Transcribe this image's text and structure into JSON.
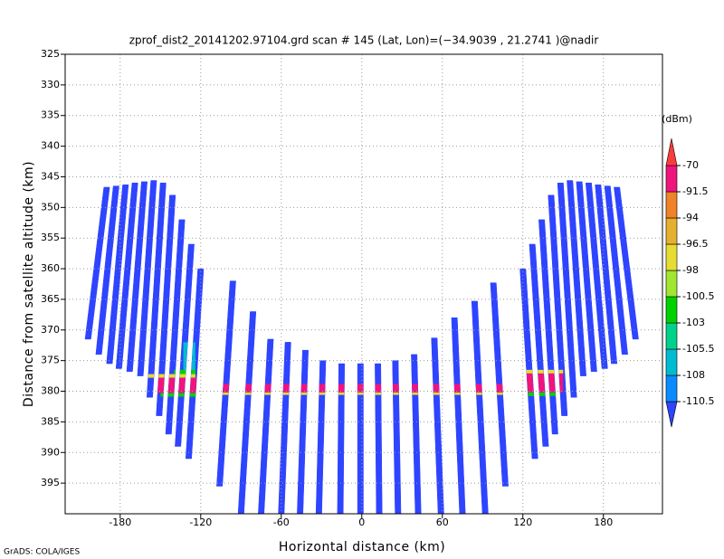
{
  "chart_data": {
    "type": "beam-profile",
    "title": "zprof_dist2_20141202.97104.grd   scan # 145   (Lat, Lon)=(−34.9039 , 21.2741 )@nadir",
    "x_label": "Horizontal distance (km)",
    "y_label": "Distance from satellite altitude (km)",
    "colorbar_label": "(dBm)",
    "credit": "GrADS: COLA/IGES",
    "xlim": [
      -221,
      224
    ],
    "ylim": [
      325,
      400
    ],
    "xticks": [
      -180,
      -120,
      -60,
      0,
      60,
      120,
      180
    ],
    "yticks": [
      325,
      330,
      335,
      340,
      345,
      350,
      355,
      360,
      365,
      370,
      375,
      380,
      385,
      390,
      395
    ],
    "grid": true,
    "y_inverted": true,
    "levels": [
      -110.5,
      -108,
      -105.5,
      -103,
      -100.5,
      -98,
      -96.5,
      -94,
      -91.5,
      -70
    ],
    "colors": [
      "#2e44ff",
      "#0a8cff",
      "#00bcd2",
      "#00d28c",
      "#00d200",
      "#a0e632",
      "#e6dc32",
      "#e6af2d",
      "#f08228",
      "#f0147d",
      "#fa3c3c"
    ],
    "beam_value": -112,
    "beams": [
      {
        "x_top": -190,
        "x_bottom": -204,
        "top": 346.7,
        "bottom": 371.5
      },
      {
        "x_top": -183,
        "x_bottom": -196,
        "top": 346.5,
        "bottom": 374
      },
      {
        "x_top": -176,
        "x_bottom": -188,
        "top": 346.3,
        "bottom": 375.5
      },
      {
        "x_top": -169,
        "x_bottom": -181,
        "top": 346,
        "bottom": 376.3
      },
      {
        "x_top": -162,
        "x_bottom": -173,
        "top": 345.8,
        "bottom": 376.8
      },
      {
        "x_top": -155,
        "x_bottom": -165,
        "top": 345.6,
        "bottom": 377.5
      },
      {
        "x_top": -148,
        "x_bottom": -158,
        "top": 346,
        "bottom": 381
      },
      {
        "x_top": -141,
        "x_bottom": -151,
        "top": 348,
        "bottom": 384
      },
      {
        "x_top": -134,
        "x_bottom": -144,
        "top": 352,
        "bottom": 387
      },
      {
        "x_top": -127,
        "x_bottom": -137,
        "top": 356,
        "bottom": 389
      },
      {
        "x_top": -120,
        "x_bottom": -129,
        "top": 360,
        "bottom": 391
      },
      {
        "x_top": -96,
        "x_bottom": -106,
        "top": 362,
        "bottom": 395.5
      },
      {
        "x_top": -81,
        "x_bottom": -90,
        "top": 367,
        "bottom": 400
      },
      {
        "x_top": -68,
        "x_bottom": -75,
        "top": 371.5,
        "bottom": 400
      },
      {
        "x_top": -55,
        "x_bottom": -60,
        "top": 372,
        "bottom": 400
      },
      {
        "x_top": -42,
        "x_bottom": -46,
        "top": 373.3,
        "bottom": 400
      },
      {
        "x_top": -29,
        "x_bottom": -32,
        "top": 375,
        "bottom": 400
      },
      {
        "x_top": -15,
        "x_bottom": -16,
        "top": 375.5,
        "bottom": 400
      },
      {
        "x_top": -1,
        "x_bottom": -1,
        "top": 375.5,
        "bottom": 400
      },
      {
        "x_top": 12,
        "x_bottom": 13,
        "top": 375.5,
        "bottom": 400
      },
      {
        "x_top": 25,
        "x_bottom": 27,
        "top": 375,
        "bottom": 400
      },
      {
        "x_top": 39,
        "x_bottom": 42,
        "top": 374,
        "bottom": 400
      },
      {
        "x_top": 54,
        "x_bottom": 59,
        "top": 371.3,
        "bottom": 400
      },
      {
        "x_top": 69,
        "x_bottom": 75,
        "top": 368,
        "bottom": 400
      },
      {
        "x_top": 84,
        "x_bottom": 92,
        "top": 365.3,
        "bottom": 400
      },
      {
        "x_top": 98,
        "x_bottom": 107,
        "top": 362.3,
        "bottom": 395.5
      },
      {
        "x_top": 120,
        "x_bottom": 129,
        "top": 360,
        "bottom": 391
      },
      {
        "x_top": 127,
        "x_bottom": 137,
        "top": 356,
        "bottom": 389
      },
      {
        "x_top": 134,
        "x_bottom": 144,
        "top": 352,
        "bottom": 387
      },
      {
        "x_top": 141,
        "x_bottom": 151,
        "top": 348,
        "bottom": 384
      },
      {
        "x_top": 148,
        "x_bottom": 158,
        "top": 346,
        "bottom": 381
      },
      {
        "x_top": 155,
        "x_bottom": 165,
        "top": 345.6,
        "bottom": 377.5
      },
      {
        "x_top": 162,
        "x_bottom": 173,
        "top": 345.8,
        "bottom": 376.8
      },
      {
        "x_top": 169,
        "x_bottom": 181,
        "top": 346,
        "bottom": 376.3
      },
      {
        "x_top": 176,
        "x_bottom": 188,
        "top": 346.3,
        "bottom": 375.5
      },
      {
        "x_top": 183,
        "x_bottom": 196,
        "top": 346.5,
        "bottom": 374
      },
      {
        "x_top": 190,
        "x_bottom": 204,
        "top": 346.7,
        "bottom": 371.5
      }
    ],
    "echoes": [
      {
        "x": [
          -133,
          -124
        ],
        "alt": [
          372,
          377
        ],
        "value": -107
      },
      {
        "x": [
          -140,
          -124
        ],
        "alt": [
          376.5,
          377.5
        ],
        "value": -101
      },
      {
        "x": [
          -160,
          -124
        ],
        "alt": [
          377.2,
          377.8
        ],
        "value": -97
      },
      {
        "x": [
          -155,
          -120
        ],
        "alt": [
          377.8,
          380.3
        ],
        "value": -85
      },
      {
        "x": [
          -150,
          -120
        ],
        "alt": [
          380.3,
          380.9
        ],
        "value": -102
      },
      {
        "x": [
          -120,
          120
        ],
        "alt": [
          378.8,
          380.2
        ],
        "value": -85
      },
      {
        "x": [
          -120,
          120
        ],
        "alt": [
          380.2,
          380.6
        ],
        "value": -97
      },
      {
        "x": [
          120,
          150
        ],
        "alt": [
          376.5,
          377.1
        ],
        "value": -97
      },
      {
        "x": [
          118,
          150
        ],
        "alt": [
          377.1,
          380.2
        ],
        "value": -85
      },
      {
        "x": [
          118,
          145
        ],
        "alt": [
          380.2,
          380.8
        ],
        "value": -103
      }
    ]
  }
}
